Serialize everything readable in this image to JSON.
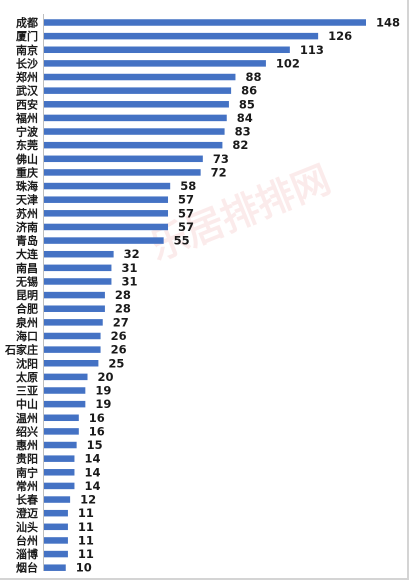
{
  "chart_data": {
    "type": "bar",
    "orientation": "horizontal",
    "categories": [
      "成都",
      "厦门",
      "南京",
      "长沙",
      "郑州",
      "武汉",
      "西安",
      "福州",
      "宁波",
      "东莞",
      "佛山",
      "重庆",
      "珠海",
      "天津",
      "苏州",
      "济南",
      "青岛",
      "大连",
      "南昌",
      "无锡",
      "昆明",
      "合肥",
      "泉州",
      "海口",
      "石家庄",
      "沈阳",
      "太原",
      "三亚",
      "中山",
      "温州",
      "绍兴",
      "惠州",
      "贵阳",
      "南宁",
      "常州",
      "长春",
      "澄迈",
      "汕头",
      "台州",
      "淄博",
      "烟台"
    ],
    "values": [
      148,
      126,
      113,
      102,
      88,
      86,
      85,
      84,
      83,
      82,
      73,
      72,
      58,
      57,
      57,
      57,
      55,
      32,
      31,
      31,
      28,
      28,
      27,
      26,
      26,
      25,
      20,
      19,
      19,
      16,
      16,
      15,
      14,
      14,
      14,
      12,
      11,
      11,
      11,
      11,
      10
    ],
    "xlim": [
      0,
      148
    ],
    "bar_color": "#4472c4",
    "grid": false,
    "legend": "none"
  },
  "watermark": {
    "text": "乐居排排网"
  }
}
